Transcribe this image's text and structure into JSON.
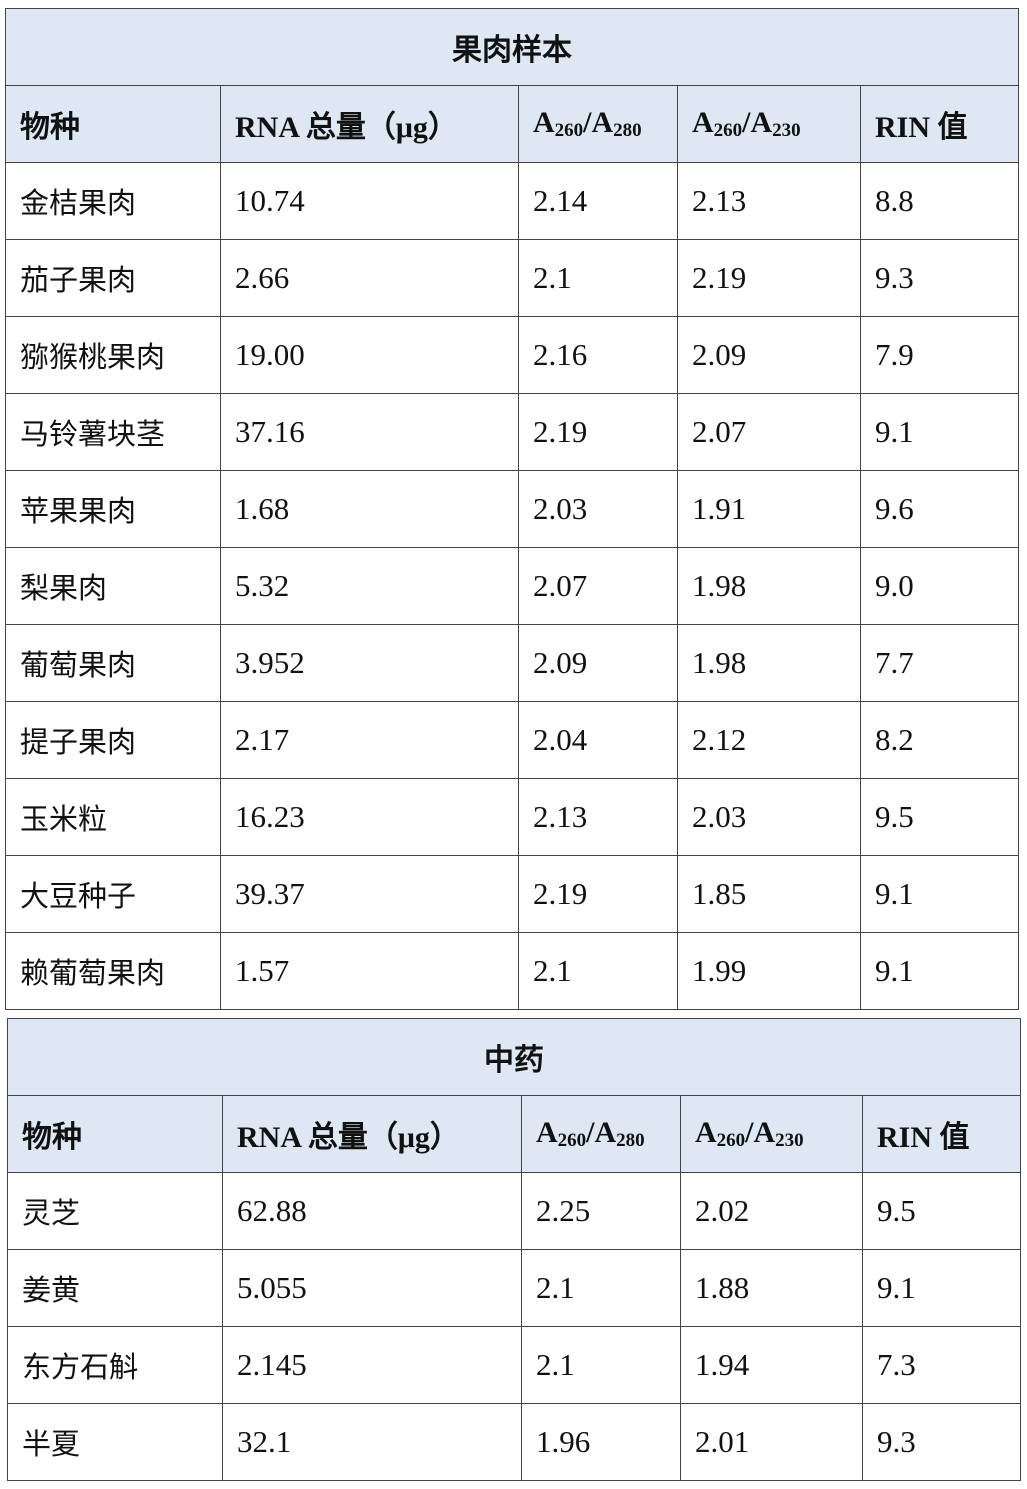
{
  "headers": {
    "species": "物种",
    "rna": "RNA 总量（μg）",
    "a280": {
      "a": "A",
      "s1": "260",
      "b": "/A",
      "s2": "280"
    },
    "a230": {
      "a": "A",
      "s1": "260",
      "b": "/A",
      "s2": "230"
    },
    "rin": "RIN 值"
  },
  "sections": [
    {
      "title": "果肉样本",
      "rows": [
        [
          "金桔果肉",
          "10.74",
          "2.14",
          "2.13",
          "8.8"
        ],
        [
          "茄子果肉",
          "2.66",
          "2.1",
          "2.19",
          "9.3"
        ],
        [
          "猕猴桃果肉",
          "19.00",
          "2.16",
          "2.09",
          "7.9"
        ],
        [
          "马铃薯块茎",
          "37.16",
          "2.19",
          "2.07",
          "9.1"
        ],
        [
          "苹果果肉",
          "1.68",
          "2.03",
          "1.91",
          "9.6"
        ],
        [
          "梨果肉",
          "5.32",
          "2.07",
          "1.98",
          "9.0"
        ],
        [
          "葡萄果肉",
          "3.952",
          "2.09",
          "1.98",
          "7.7"
        ],
        [
          "提子果肉",
          "2.17",
          "2.04",
          "2.12",
          "8.2"
        ],
        [
          "玉米粒",
          "16.23",
          "2.13",
          "2.03",
          "9.5"
        ],
        [
          "大豆种子",
          "39.37",
          "2.19",
          "1.85",
          "9.1"
        ],
        [
          "赖葡萄果肉",
          "1.57",
          "2.1",
          "1.99",
          "9.1"
        ]
      ]
    },
    {
      "title": "中药",
      "rows": [
        [
          "灵芝",
          "62.88",
          "2.25",
          "2.02",
          "9.5"
        ],
        [
          "姜黄",
          "5.055",
          "2.1",
          "1.88",
          "9.1"
        ],
        [
          "东方石斛",
          "2.145",
          "2.1",
          "1.94",
          "7.3"
        ],
        [
          "半夏",
          "32.1",
          "1.96",
          "2.01",
          "9.3"
        ]
      ]
    }
  ],
  "colors": {
    "header_bg": "#dde8f4",
    "border": "#444444"
  }
}
